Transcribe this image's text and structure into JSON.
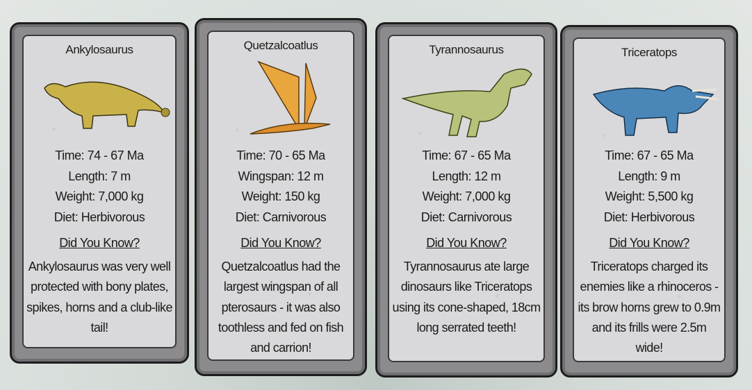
{
  "cards": [
    {
      "name": "Ankylosaurus",
      "time": "Time:  74 - 67 Ma",
      "size": "Length:  7 m",
      "weight": "Weight:  7,000 kg",
      "diet": "Diet:  Herbivorous",
      "dyk": "Did You Know?",
      "fact": "Ankylosaurus was very well protected with bony plates, spikes, horns and a club-like tail!",
      "color": "#c9b24a"
    },
    {
      "name": "Quetzalcoatlus",
      "time": "Time:  70 - 65 Ma",
      "size": "Wingspan:  12 m",
      "weight": "Weight:  150 kg",
      "diet": "Diet:  Carnivorous",
      "dyk": "Did You Know?",
      "fact": "Quetzalcoatlus had the largest wingspan of all pterosaurs - it was also toothless and fed on fish and carrion!",
      "color": "#e9a63c"
    },
    {
      "name": "Tyrannosaurus",
      "time": "Time:  67 - 65 Ma",
      "size": "Length:  12 m",
      "weight": "Weight:  7,000 kg",
      "diet": "Diet:  Carnivorous",
      "dyk": "Did You Know?",
      "fact": "Tyrannosaurus ate large dinosaurs like Triceratops using its cone-shaped, 18cm long serrated teeth!",
      "color": "#b9c27a"
    },
    {
      "name": "Triceratops",
      "time": "Time:  67 - 65 Ma",
      "size": "Length:  9 m",
      "weight": "Weight:  5,500 kg",
      "diet": "Diet:  Herbivorous",
      "dyk": "Did You Know?",
      "fact": "Triceratops charged its enemies like a rhinoceros - its brow horns grew to 0.9m and its frills were 2.5m wide!",
      "color": "#4a86b8"
    }
  ]
}
